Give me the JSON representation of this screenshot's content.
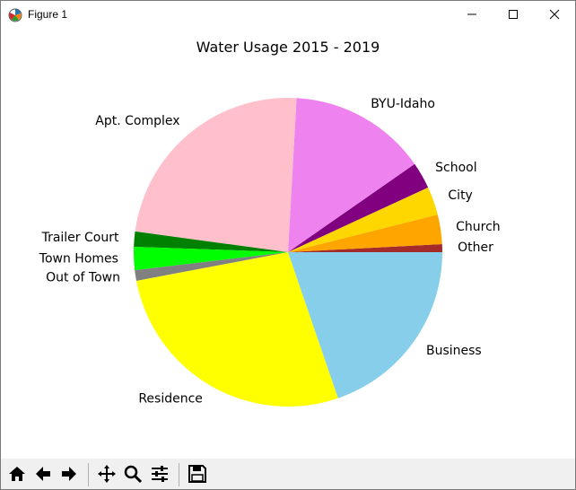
{
  "window": {
    "title": "Figure 1",
    "minimize_icon": "minimize-icon",
    "maximize_icon": "maximize-icon",
    "close_icon": "close-icon"
  },
  "toolbar": {
    "buttons": [
      {
        "name": "home-button",
        "icon": "home-icon"
      },
      {
        "name": "back-button",
        "icon": "arrow-left-icon"
      },
      {
        "name": "forward-button",
        "icon": "arrow-right-icon"
      },
      {
        "name": "pan-button",
        "icon": "move-icon"
      },
      {
        "name": "zoom-button",
        "icon": "magnifier-icon"
      },
      {
        "name": "configure-subplots-button",
        "icon": "sliders-icon"
      },
      {
        "name": "save-button",
        "icon": "floppy-disk-icon"
      }
    ]
  },
  "chart_data": {
    "type": "pie",
    "title": "Water Usage 2015 - 2019",
    "start_angle_deg": 0,
    "direction": "counterclockwise",
    "slices": [
      {
        "label": "Other",
        "value": 0.9,
        "color": "#a52a2a"
      },
      {
        "label": "Church",
        "value": 3.3,
        "color": "#ffa500"
      },
      {
        "label": "City",
        "value": 3.2,
        "color": "#ffd700"
      },
      {
        "label": "School",
        "value": 3.0,
        "color": "#800080"
      },
      {
        "label": "BYU-Idaho",
        "value": 15.5,
        "color": "#ee82ee"
      },
      {
        "label": "Apt. Complex",
        "value": 25.5,
        "color": "#ffc0cb"
      },
      {
        "label": "Trailer Court",
        "value": 1.7,
        "color": "#008000"
      },
      {
        "label": "Town Homes",
        "value": 2.6,
        "color": "#00ff00"
      },
      {
        "label": "Out of Town",
        "value": 1.2,
        "color": "#808080"
      },
      {
        "label": "Residence",
        "value": 29.3,
        "color": "#ffff00"
      },
      {
        "label": "Business",
        "value": 21.2,
        "color": "#87ceeb"
      }
    ]
  }
}
